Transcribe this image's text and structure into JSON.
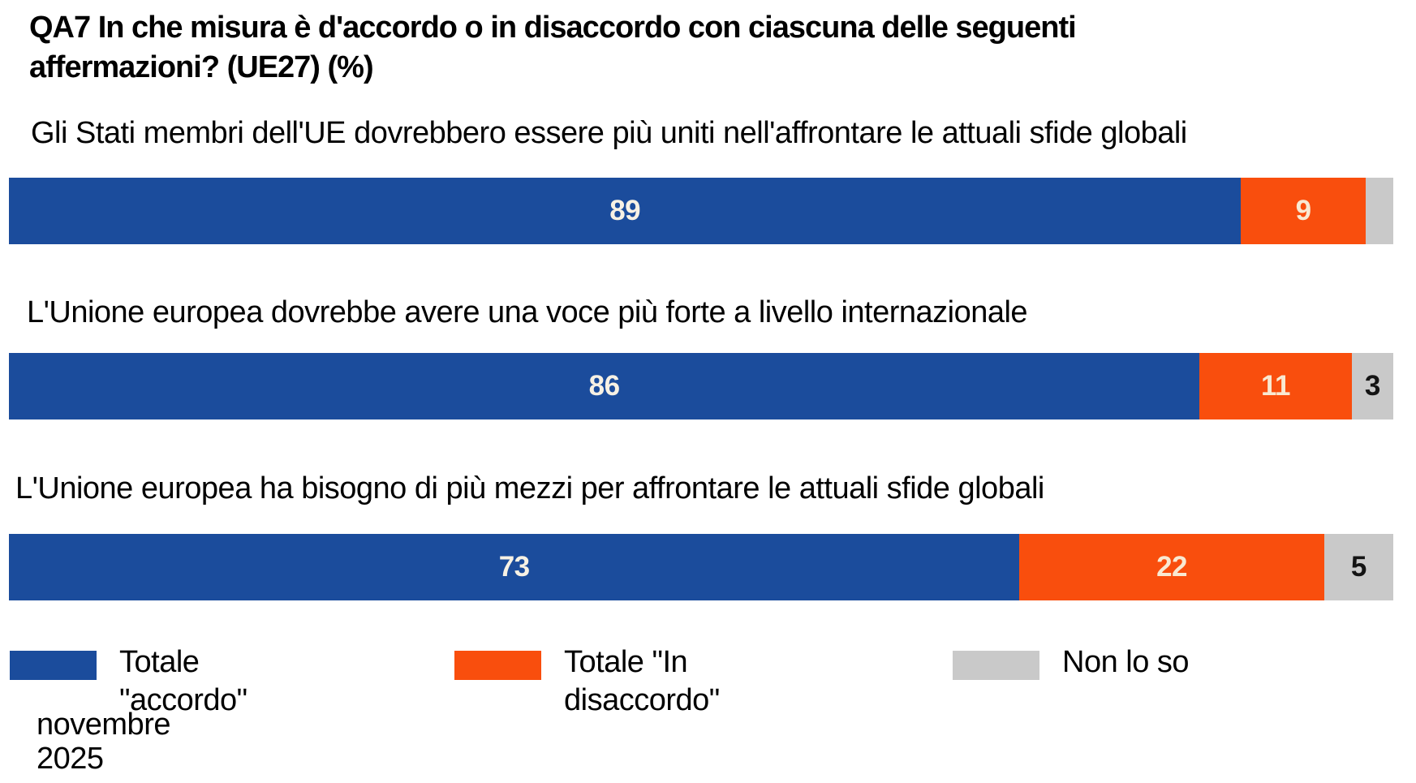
{
  "title": {
    "lines": [
      "QA7 In che misura è d'accordo o in disaccordo con ciascuna delle seguenti",
      "affermazioni? (UE27) (%)"
    ]
  },
  "chart_data": {
    "type": "bar",
    "orientation": "horizontal_stacked",
    "unit": "%",
    "region": "UE27",
    "categories": [
      "Gli Stati membri dell'UE dovrebbero essere più uniti nell'affrontare le attuali sfide globali",
      "L'Unione europea dovrebbe avere una voce più forte a livello internazionale",
      "L'Unione europea ha bisogno di più mezzi per affrontare le attuali sfide globali"
    ],
    "series": [
      {
        "name": "Totale \"accordo\"",
        "color": "#1B4C9C",
        "label_color": "#F7F1E4",
        "values": [
          89,
          86,
          73
        ]
      },
      {
        "name": "Totale \"In disaccordo\"",
        "color": "#F94E0D",
        "label_color": "#F9E9D2",
        "values": [
          9,
          11,
          22
        ]
      },
      {
        "name": "Non lo so",
        "color": "#C9C9C9",
        "label_color": "#141414",
        "values": [
          2,
          3,
          5
        ]
      }
    ],
    "value_labels": [
      [
        "89",
        "9",
        ""
      ],
      [
        "86",
        "11",
        "3"
      ],
      [
        "73",
        "22",
        "5"
      ]
    ],
    "xlim": [
      0,
      100
    ],
    "grid": false,
    "legend_position": "bottom",
    "wave": "novembre 2025"
  },
  "legend": {
    "items": [
      {
        "lines": [
          "Totale",
          "\"accordo\""
        ]
      },
      {
        "lines": [
          "Totale \"In",
          "disaccordo\""
        ]
      },
      {
        "lines": [
          "Non lo so"
        ]
      }
    ]
  },
  "footnote": {
    "lines": [
      "novembre",
      "2025"
    ]
  }
}
